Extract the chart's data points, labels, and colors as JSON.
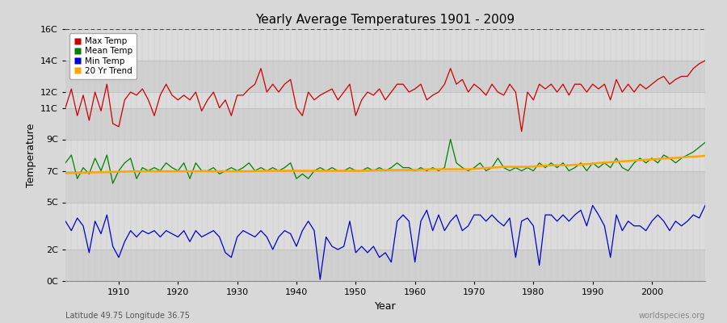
{
  "title": "Yearly Average Temperatures 1901 - 2009",
  "xlabel": "Year",
  "ylabel": "Temperature",
  "latitude": "Latitude 49.75 Longitude 36.75",
  "source": "worldspecies.org",
  "years": [
    1901,
    1902,
    1903,
    1904,
    1905,
    1906,
    1907,
    1908,
    1909,
    1910,
    1911,
    1912,
    1913,
    1914,
    1915,
    1916,
    1917,
    1918,
    1919,
    1920,
    1921,
    1922,
    1923,
    1924,
    1925,
    1926,
    1927,
    1928,
    1929,
    1930,
    1931,
    1932,
    1933,
    1934,
    1935,
    1936,
    1937,
    1938,
    1939,
    1940,
    1941,
    1942,
    1943,
    1944,
    1945,
    1946,
    1947,
    1948,
    1949,
    1950,
    1951,
    1952,
    1953,
    1954,
    1955,
    1956,
    1957,
    1958,
    1959,
    1960,
    1961,
    1962,
    1963,
    1964,
    1965,
    1966,
    1967,
    1968,
    1969,
    1970,
    1971,
    1972,
    1973,
    1974,
    1975,
    1976,
    1977,
    1978,
    1979,
    1980,
    1981,
    1982,
    1983,
    1984,
    1985,
    1986,
    1987,
    1988,
    1989,
    1990,
    1991,
    1992,
    1993,
    1994,
    1995,
    1996,
    1997,
    1998,
    1999,
    2000,
    2001,
    2002,
    2003,
    2004,
    2005,
    2006,
    2007,
    2008,
    2009
  ],
  "max_temp": [
    11.0,
    12.2,
    10.5,
    11.8,
    10.2,
    12.0,
    10.8,
    12.5,
    10.0,
    9.8,
    11.5,
    12.0,
    11.8,
    12.2,
    11.5,
    10.5,
    11.8,
    12.5,
    11.8,
    11.5,
    11.8,
    11.5,
    12.0,
    10.8,
    11.5,
    12.0,
    11.0,
    11.5,
    10.5,
    11.8,
    11.8,
    12.2,
    12.5,
    13.5,
    12.0,
    12.5,
    12.0,
    12.5,
    12.8,
    11.0,
    10.5,
    12.0,
    11.5,
    11.8,
    12.0,
    12.2,
    11.5,
    12.0,
    12.5,
    10.5,
    11.5,
    12.0,
    11.8,
    12.2,
    11.5,
    12.0,
    12.5,
    12.5,
    12.0,
    12.2,
    12.5,
    11.5,
    11.8,
    12.0,
    12.5,
    13.5,
    12.5,
    12.8,
    12.0,
    12.5,
    12.2,
    11.8,
    12.5,
    12.0,
    11.8,
    12.5,
    12.0,
    9.5,
    12.0,
    11.5,
    12.5,
    12.2,
    12.5,
    12.0,
    12.5,
    11.8,
    12.5,
    12.5,
    12.0,
    12.5,
    12.2,
    12.5,
    11.5,
    12.8,
    12.0,
    12.5,
    12.0,
    12.5,
    12.2,
    12.5,
    12.8,
    13.0,
    12.5,
    12.8,
    13.0,
    13.0,
    13.5,
    13.8,
    14.0
  ],
  "mean_temp": [
    7.5,
    8.0,
    6.5,
    7.2,
    6.8,
    7.8,
    7.0,
    8.0,
    6.2,
    7.0,
    7.5,
    7.8,
    6.5,
    7.2,
    7.0,
    7.2,
    7.0,
    7.5,
    7.2,
    7.0,
    7.5,
    6.5,
    7.5,
    7.0,
    7.0,
    7.2,
    6.8,
    7.0,
    7.2,
    7.0,
    7.2,
    7.5,
    7.0,
    7.2,
    7.0,
    7.2,
    7.0,
    7.2,
    7.5,
    6.5,
    6.8,
    6.5,
    7.0,
    7.2,
    7.0,
    7.2,
    7.0,
    7.0,
    7.2,
    7.0,
    7.0,
    7.2,
    7.0,
    7.2,
    7.0,
    7.2,
    7.5,
    7.2,
    7.2,
    7.0,
    7.2,
    7.0,
    7.2,
    7.0,
    7.2,
    9.0,
    7.5,
    7.2,
    7.0,
    7.2,
    7.5,
    7.0,
    7.2,
    7.8,
    7.2,
    7.0,
    7.2,
    7.0,
    7.2,
    7.0,
    7.5,
    7.2,
    7.5,
    7.2,
    7.5,
    7.0,
    7.2,
    7.5,
    7.0,
    7.5,
    7.2,
    7.5,
    7.2,
    7.8,
    7.2,
    7.0,
    7.5,
    7.8,
    7.5,
    7.8,
    7.5,
    8.0,
    7.8,
    7.5,
    7.8,
    8.0,
    8.2,
    8.5,
    8.8
  ],
  "min_temp": [
    3.8,
    3.2,
    4.0,
    3.5,
    1.8,
    3.8,
    3.0,
    4.2,
    2.2,
    1.5,
    2.5,
    3.2,
    2.8,
    3.2,
    3.0,
    3.2,
    2.8,
    3.2,
    3.0,
    2.8,
    3.2,
    2.5,
    3.2,
    2.8,
    3.0,
    3.2,
    2.8,
    1.8,
    1.5,
    2.8,
    3.2,
    3.0,
    2.8,
    3.2,
    2.8,
    2.0,
    2.8,
    3.2,
    3.0,
    2.2,
    3.2,
    3.8,
    3.2,
    0.1,
    2.8,
    2.2,
    2.0,
    2.2,
    3.8,
    1.8,
    2.2,
    1.8,
    2.2,
    1.5,
    1.8,
    1.2,
    3.8,
    4.2,
    3.8,
    1.2,
    3.8,
    4.5,
    3.2,
    4.2,
    3.2,
    3.8,
    4.2,
    3.2,
    3.5,
    4.2,
    4.2,
    3.8,
    4.2,
    3.8,
    3.5,
    4.0,
    1.5,
    3.8,
    4.0,
    3.5,
    1.0,
    4.2,
    4.2,
    3.8,
    4.2,
    3.8,
    4.2,
    4.5,
    3.5,
    4.8,
    4.2,
    3.5,
    1.5,
    4.2,
    3.2,
    3.8,
    3.5,
    3.5,
    3.2,
    3.8,
    4.2,
    3.8,
    3.2,
    3.8,
    3.5,
    3.8,
    4.2,
    4.0,
    4.8
  ],
  "trend": [
    6.85,
    6.86,
    6.87,
    6.88,
    6.89,
    6.9,
    6.91,
    6.92,
    6.93,
    6.94,
    6.95,
    6.96,
    6.97,
    6.97,
    6.97,
    6.97,
    6.97,
    6.97,
    6.97,
    6.97,
    6.97,
    6.97,
    6.97,
    6.97,
    6.97,
    6.97,
    6.97,
    6.97,
    6.97,
    6.97,
    6.97,
    6.97,
    6.98,
    6.99,
    7.0,
    7.0,
    7.0,
    7.0,
    7.0,
    7.0,
    7.0,
    7.0,
    7.0,
    7.0,
    7.0,
    7.0,
    7.0,
    7.0,
    7.0,
    7.0,
    7.0,
    7.02,
    7.03,
    7.04,
    7.05,
    7.05,
    7.05,
    7.05,
    7.05,
    7.05,
    7.07,
    7.09,
    7.1,
    7.1,
    7.1,
    7.1,
    7.1,
    7.1,
    7.1,
    7.12,
    7.15,
    7.18,
    7.2,
    7.22,
    7.25,
    7.25,
    7.25,
    7.25,
    7.25,
    7.27,
    7.3,
    7.33,
    7.35,
    7.35,
    7.35,
    7.35,
    7.38,
    7.4,
    7.42,
    7.45,
    7.5,
    7.52,
    7.55,
    7.58,
    7.6,
    7.62,
    7.65,
    7.68,
    7.7,
    7.72,
    7.75,
    7.78,
    7.8,
    7.82,
    7.85,
    7.88,
    7.9,
    7.92,
    7.95
  ],
  "max_color": "#cc0000",
  "mean_color": "#008000",
  "min_color": "#0000cc",
  "trend_color": "#ffa500",
  "bg_color": "#d8d8d8",
  "band_colors": [
    "#d0d0d0",
    "#dcdcdc",
    "#d0d0d0",
    "#dcdcdc",
    "#d0d0d0",
    "#dcdcdc",
    "#d0d0d0",
    "#dcdcdc"
  ],
  "band_boundaries": [
    0,
    2,
    5,
    7,
    9,
    11,
    12,
    14,
    16
  ],
  "ylim": [
    0,
    16
  ],
  "xlim": [
    1901,
    2009
  ],
  "yticks": [
    0,
    2,
    5,
    7,
    9,
    11,
    12,
    14,
    16
  ],
  "ytick_labels": [
    "0C",
    "2C",
    "5C",
    "7C",
    "9C",
    "11C",
    "12C",
    "14C",
    "16C"
  ]
}
